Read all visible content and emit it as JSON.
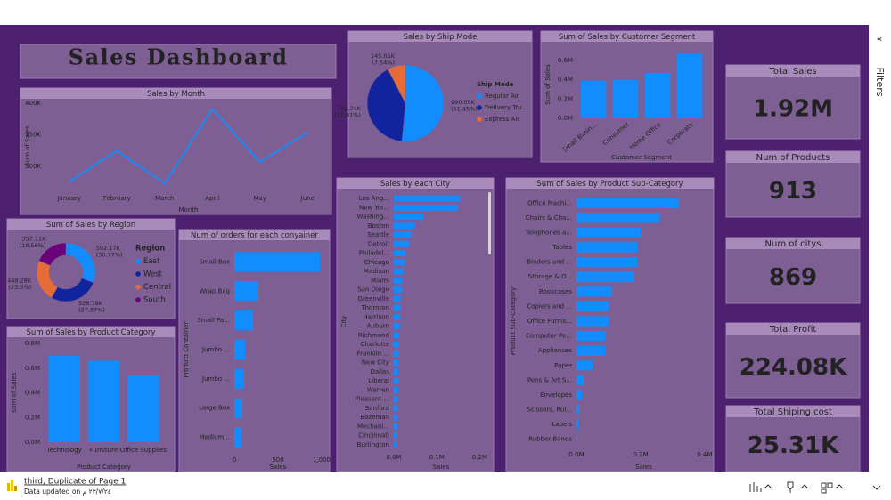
{
  "header": {
    "title": "Sales Dashboard"
  },
  "filters": {
    "collapse": "«",
    "label": "Filters"
  },
  "footer": {
    "page": "third, Duplicate of Page 1",
    "updated": "Data updated on ٢٣/٧/٢٤ م"
  },
  "cards": [
    {
      "label": "Total Sales",
      "value": "1.92M"
    },
    {
      "label": "Num of Products",
      "value": "913"
    },
    {
      "label": "Num of citys",
      "value": "869"
    },
    {
      "label": "Total Profit",
      "value": "224.08K"
    },
    {
      "label": "Total Shiping cost",
      "value": "25.31K"
    }
  ],
  "chart_data": [
    {
      "type": "line",
      "title": "Sales by Month",
      "x_label": "Month",
      "y_label": "Sum of Sales",
      "color": "#118dff",
      "categories": [
        "January",
        "February",
        "March",
        "April",
        "May",
        "June"
      ],
      "values": [
        276000,
        325000,
        273000,
        391000,
        307000,
        354000
      ],
      "ylim": [
        265000,
        400000
      ],
      "yticks": [
        {
          "value": 300000,
          "label": "300K"
        },
        {
          "value": 350000,
          "label": "350K"
        },
        {
          "value": 400000,
          "label": "400K"
        }
      ]
    },
    {
      "type": "pie",
      "title": "Sales by Ship Mode",
      "legend_title": "Ship Mode",
      "categories": [
        "Regular Air",
        "Delivery Tru...",
        "Express Air"
      ],
      "values": [
        990.05,
        789.24,
        145.05
      ],
      "value_labels": [
        "990.05K (51.45%)",
        "789.24K (41.01%)",
        "145.05K (7.54%)"
      ],
      "colors": [
        "#118dff",
        "#12239e",
        "#e66c37"
      ]
    },
    {
      "type": "bar",
      "title": "Sum of Sales by Customer Segment",
      "x_label": "Customer Segment",
      "y_label": "Sum of Sales",
      "color": "#118dff",
      "categories": [
        "Small Busin...",
        "Consumer",
        "Home Office",
        "Corporate"
      ],
      "values": [
        0.39,
        0.4,
        0.47,
        0.67
      ],
      "ylim": [
        0,
        0.7
      ],
      "yticks": [
        {
          "value": 0,
          "label": "0.0M"
        },
        {
          "value": 0.2,
          "label": "0.2M"
        },
        {
          "value": 0.4,
          "label": "0.4M"
        },
        {
          "value": 0.6,
          "label": "0.6M"
        }
      ]
    },
    {
      "type": "donut",
      "title": "Sum of Sales by Region",
      "legend_title": "Region",
      "categories": [
        "East",
        "West",
        "Central",
        "South"
      ],
      "values": [
        592.17,
        526.78,
        448.28,
        357.11
      ],
      "value_labels": [
        "592.17K (30.77%)",
        "526.78K (27.37%)",
        "448.28K (23.3%)",
        "357.11K (18.56%)"
      ],
      "colors": [
        "#118dff",
        "#12239e",
        "#e66c37",
        "#6b007b"
      ]
    },
    {
      "type": "barh",
      "title": "Num of orders for each conyainer",
      "x_label": "Sales",
      "y_label": "Product Container",
      "color": "#118dff",
      "categories": [
        "Small Box",
        "Wrap Bag",
        "Small Pa...",
        "Jumbo ...",
        "Jumbo ...",
        "Large Box",
        "Medium..."
      ],
      "values": [
        980,
        275,
        215,
        125,
        110,
        90,
        80
      ],
      "xlim": [
        0,
        1000
      ],
      "xticks": [
        0,
        500,
        {
          "value": 1000,
          "label": "1,000"
        }
      ]
    },
    {
      "type": "bar",
      "title": "Sum of Sales by Product Category",
      "x_label": "Product Category",
      "y_label": "Sum of Sales",
      "color": "#118dff",
      "categories": [
        "Technology",
        "Furniture",
        "Office Supplies"
      ],
      "values": [
        0.7,
        0.66,
        0.54
      ],
      "ylim": [
        0,
        0.8
      ],
      "yticks": [
        {
          "value": 0,
          "label": "0.0M"
        },
        {
          "value": 0.2,
          "label": "0.2M"
        },
        {
          "value": 0.4,
          "label": "0.4M"
        },
        {
          "value": 0.6,
          "label": "0.6M"
        },
        {
          "value": 0.8,
          "label": "0.8M"
        }
      ]
    },
    {
      "type": "barh",
      "title": "Sales by each City",
      "x_label": "Sales",
      "y_label": "City",
      "color": "#118dff",
      "categories": [
        "Los Ang...",
        "New Yor...",
        "Washing...",
        "Boston",
        "Seattle",
        "Detroit",
        "Philadel...",
        "Chicago",
        "Madison",
        "Miami",
        "San Diego",
        "Greenville",
        "Thornton",
        "Harrison",
        "Auburn",
        "Richmond",
        "Charlotte",
        "Franklin ...",
        "New City",
        "Dallas",
        "Liberal",
        "Warren",
        "Pleasant ...",
        "Sanford",
        "Bozeman",
        "Mechani...",
        "Cincinnati",
        "Burlington"
      ],
      "values": [
        0.155,
        0.149,
        0.069,
        0.049,
        0.041,
        0.035,
        0.027,
        0.026,
        0.022,
        0.02,
        0.018,
        0.016,
        0.016,
        0.014,
        0.014,
        0.012,
        0.012,
        0.012,
        0.01,
        0.01,
        0.01,
        0.01,
        0.009,
        0.009,
        0.009,
        0.009,
        0.008,
        0.008
      ],
      "xlim": [
        0,
        0.22
      ],
      "xticks": [
        {
          "value": 0,
          "label": "0.0M"
        },
        {
          "value": 0.1,
          "label": "0.1M"
        },
        {
          "value": 0.2,
          "label": "0.2M"
        }
      ]
    },
    {
      "type": "barh",
      "title": "Sum of Sales by Product Sub-Category",
      "x_label": "Sales",
      "y_label": "Product Sub-Category",
      "color": "#118dff",
      "categories": [
        "Office Machi...",
        "Chairs & Cha...",
        "Telephones a...",
        "Tables",
        "Binders and ...",
        "Storage & O...",
        "Bookcases",
        "Copiers and ...",
        "Office Furnis...",
        "Computer Pe...",
        "Appliances",
        "Paper",
        "Pens & Art S...",
        "Envelopes",
        "Scissors, Rul...",
        "Labels",
        "Rubber Bands"
      ],
      "values": [
        0.32,
        0.26,
        0.2,
        0.19,
        0.19,
        0.18,
        0.11,
        0.1,
        0.1,
        0.09,
        0.09,
        0.05,
        0.025,
        0.017,
        0.008,
        0.006,
        0.003
      ],
      "xlim": [
        0,
        0.42
      ],
      "xticks": [
        {
          "value": 0,
          "label": "0.0M"
        },
        {
          "value": 0.2,
          "label": "0.2M"
        },
        {
          "value": 0.4,
          "label": "0.4M"
        }
      ]
    }
  ]
}
